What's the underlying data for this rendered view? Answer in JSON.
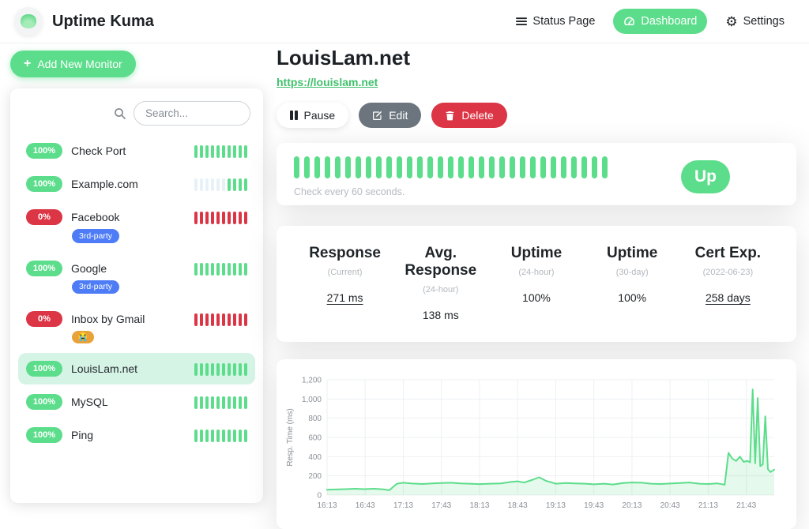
{
  "header": {
    "app_title": "Uptime Kuma",
    "status_page_label": "Status Page",
    "dashboard_label": "Dashboard",
    "settings_label": "Settings"
  },
  "sidebar": {
    "add_button_label": "Add New Monitor",
    "search_placeholder": "Search...",
    "monitors": [
      {
        "name": "Check Port",
        "uptime": "100%",
        "status": "up",
        "selected": false,
        "tags": [],
        "beats": [
          "up",
          "up",
          "up",
          "up",
          "up",
          "up",
          "up",
          "up",
          "up",
          "up"
        ]
      },
      {
        "name": "Example.com",
        "uptime": "100%",
        "status": "up",
        "selected": false,
        "tags": [],
        "beats": [
          "empty",
          "empty",
          "empty",
          "empty",
          "empty",
          "empty",
          "up",
          "up",
          "up",
          "up"
        ]
      },
      {
        "name": "Facebook",
        "uptime": "0%",
        "status": "down",
        "selected": false,
        "tags": [
          {
            "label": "3rd-party",
            "type": "info"
          }
        ],
        "beats": [
          "down",
          "down",
          "down",
          "down",
          "down",
          "down",
          "down",
          "down",
          "down",
          "down"
        ]
      },
      {
        "name": "Google",
        "uptime": "100%",
        "status": "up",
        "selected": false,
        "tags": [
          {
            "label": "3rd-party",
            "type": "info"
          }
        ],
        "beats": [
          "up",
          "up",
          "up",
          "up",
          "up",
          "up",
          "up",
          "up",
          "up",
          "up"
        ]
      },
      {
        "name": "Inbox by Gmail",
        "uptime": "0%",
        "status": "down",
        "selected": false,
        "tags": [
          {
            "label": "😭",
            "type": "warn"
          }
        ],
        "beats": [
          "down",
          "down",
          "down",
          "down",
          "down",
          "down",
          "down",
          "down",
          "down",
          "down"
        ]
      },
      {
        "name": "LouisLam.net",
        "uptime": "100%",
        "status": "up",
        "selected": true,
        "tags": [],
        "beats": [
          "up",
          "up",
          "up",
          "up",
          "up",
          "up",
          "up",
          "up",
          "up",
          "up"
        ]
      },
      {
        "name": "MySQL",
        "uptime": "100%",
        "status": "up",
        "selected": false,
        "tags": [],
        "beats": [
          "up",
          "up",
          "up",
          "up",
          "up",
          "up",
          "up",
          "up",
          "up",
          "up"
        ]
      },
      {
        "name": "Ping",
        "uptime": "100%",
        "status": "up",
        "selected": false,
        "tags": [],
        "beats": [
          "up",
          "up",
          "up",
          "up",
          "up",
          "up",
          "up",
          "up",
          "up",
          "up"
        ]
      }
    ]
  },
  "monitor": {
    "title": "LouisLam.net",
    "url": "https://louislam.net",
    "pause_label": "Pause",
    "edit_label": "Edit",
    "delete_label": "Delete",
    "heartbeat": {
      "beat_count": 31,
      "status_label": "Up",
      "check_interval_text": "Check every 60 seconds."
    },
    "stats": [
      {
        "title": "Response",
        "subtitle": "(Current)",
        "value": "271 ms",
        "underlined": true
      },
      {
        "title": "Avg. Response",
        "subtitle": "(24-hour)",
        "value": "138 ms",
        "underlined": false
      },
      {
        "title": "Uptime",
        "subtitle": "(24-hour)",
        "value": "100%",
        "underlined": false
      },
      {
        "title": "Uptime",
        "subtitle": "(30-day)",
        "value": "100%",
        "underlined": false
      },
      {
        "title": "Cert Exp.",
        "subtitle": "(2022-06-23)",
        "value": "258 days",
        "underlined": true
      }
    ]
  },
  "chart_data": {
    "type": "area",
    "title": "",
    "xlabel": "",
    "ylabel": "Resp. Time (ms)",
    "ylim": [
      0,
      1200
    ],
    "yticks": [
      0,
      200,
      400,
      600,
      800,
      1000,
      1200
    ],
    "xticks": [
      "16:13",
      "16:43",
      "17:13",
      "17:43",
      "18:13",
      "18:43",
      "19:13",
      "19:43",
      "20:13",
      "20:43",
      "21:13",
      "21:43"
    ],
    "grid": true,
    "line_color": "#5cdd8b",
    "fill_color": "rgba(92,221,139,0.16)",
    "points": [
      {
        "time": "16:13",
        "ms": 55
      },
      {
        "time": "16:20",
        "ms": 58
      },
      {
        "time": "16:28",
        "ms": 62
      },
      {
        "time": "16:35",
        "ms": 66
      },
      {
        "time": "16:42",
        "ms": 62
      },
      {
        "time": "16:50",
        "ms": 66
      },
      {
        "time": "16:57",
        "ms": 60
      },
      {
        "time": "17:02",
        "ms": 50
      },
      {
        "time": "17:08",
        "ms": 118
      },
      {
        "time": "17:13",
        "ms": 128
      },
      {
        "time": "17:20",
        "ms": 120
      },
      {
        "time": "17:28",
        "ms": 115
      },
      {
        "time": "17:36",
        "ms": 121
      },
      {
        "time": "17:43",
        "ms": 126
      },
      {
        "time": "17:50",
        "ms": 128
      },
      {
        "time": "17:58",
        "ms": 122
      },
      {
        "time": "18:05",
        "ms": 118
      },
      {
        "time": "18:13",
        "ms": 114
      },
      {
        "time": "18:21",
        "ms": 118
      },
      {
        "time": "18:30",
        "ms": 122
      },
      {
        "time": "18:38",
        "ms": 138
      },
      {
        "time": "18:43",
        "ms": 143
      },
      {
        "time": "18:48",
        "ms": 130
      },
      {
        "time": "18:55",
        "ms": 160
      },
      {
        "time": "19:00",
        "ms": 185
      },
      {
        "time": "19:05",
        "ms": 150
      },
      {
        "time": "19:13",
        "ms": 118
      },
      {
        "time": "19:21",
        "ms": 125
      },
      {
        "time": "19:28",
        "ms": 122
      },
      {
        "time": "19:36",
        "ms": 118
      },
      {
        "time": "19:43",
        "ms": 112
      },
      {
        "time": "19:51",
        "ms": 118
      },
      {
        "time": "19:58",
        "ms": 110
      },
      {
        "time": "20:06",
        "ms": 126
      },
      {
        "time": "20:13",
        "ms": 131
      },
      {
        "time": "20:21",
        "ms": 128
      },
      {
        "time": "20:28",
        "ms": 118
      },
      {
        "time": "20:36",
        "ms": 115
      },
      {
        "time": "20:43",
        "ms": 120
      },
      {
        "time": "20:51",
        "ms": 126
      },
      {
        "time": "20:58",
        "ms": 131
      },
      {
        "time": "21:06",
        "ms": 118
      },
      {
        "time": "21:13",
        "ms": 115
      },
      {
        "time": "21:20",
        "ms": 122
      },
      {
        "time": "21:26",
        "ms": 108
      },
      {
        "time": "21:29",
        "ms": 440
      },
      {
        "time": "21:32",
        "ms": 380
      },
      {
        "time": "21:35",
        "ms": 355
      },
      {
        "time": "21:38",
        "ms": 400
      },
      {
        "time": "21:41",
        "ms": 345
      },
      {
        "time": "21:44",
        "ms": 356
      },
      {
        "time": "21:46",
        "ms": 340
      },
      {
        "time": "21:48",
        "ms": 1100
      },
      {
        "time": "21:50",
        "ms": 330
      },
      {
        "time": "21:52",
        "ms": 1010
      },
      {
        "time": "21:54",
        "ms": 300
      },
      {
        "time": "21:56",
        "ms": 320
      },
      {
        "time": "21:58",
        "ms": 820
      },
      {
        "time": "22:00",
        "ms": 270
      },
      {
        "time": "22:02",
        "ms": 240
      },
      {
        "time": "22:05",
        "ms": 265
      }
    ]
  },
  "colors": {
    "accent_green": "#5cdd8b",
    "danger_red": "#dc3545",
    "tag_blue": "#4d7cf6",
    "tag_orange": "#e9a23b",
    "selected_row_bg": "#d6f4e6",
    "empty_beat": "#e7f1f8"
  }
}
